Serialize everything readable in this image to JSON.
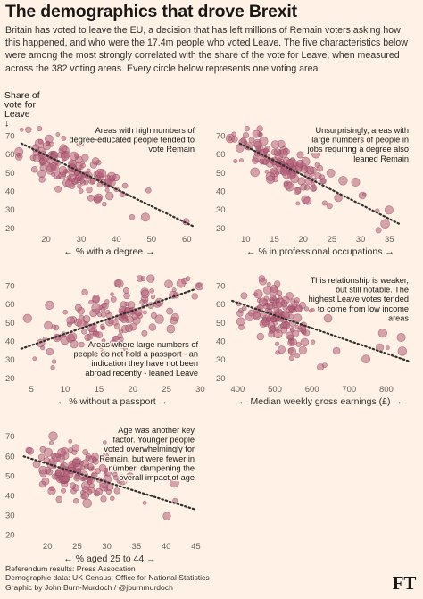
{
  "header": {
    "title": "The demographics that drove Brexit",
    "intro": "Britain has voted to leave the EU, a decision that has left millions of Remain voters asking how this happened, and who were the 17.4m people who voted Leave. The five characteristics below were among the most strongly correlated with the share of the vote for Leave, when measured across the 382 voting areas. Every circle below represents one voting area"
  },
  "y_axis_label": [
    "Share of",
    "vote for",
    "Leave",
    "↓"
  ],
  "colors": {
    "dot": "#b5607a",
    "dot_stroke": "#8e3e59",
    "trend": "#33302e",
    "background": "#fff1e5"
  },
  "chart_data": [
    {
      "type": "scatter",
      "xlabel": "← % with a degree →",
      "annotation": "Areas with high numbers of degree-educated people tended to vote Remain",
      "xlim": [
        12,
        64
      ],
      "xticks": [
        20,
        30,
        40,
        50,
        60
      ],
      "ylim": [
        18,
        76
      ],
      "yticks": [
        20,
        30,
        40,
        50,
        60,
        70
      ],
      "trend": [
        [
          13,
          66
        ],
        [
          62,
          21
        ]
      ],
      "cloud": {
        "x_mean": 27,
        "x_sd": 7,
        "x_skew_max": 60,
        "resid_sd": 6
      }
    },
    {
      "type": "scatter",
      "xlabel": "← % in professional occupations →",
      "annotation": "Unsurprisingly, areas with large numbers of people in jobs requiring a degree also leaned Remain",
      "xlim": [
        7,
        39
      ],
      "xticks": [
        10,
        15,
        20,
        25,
        30,
        35
      ],
      "ylim": [
        18,
        76
      ],
      "yticks": [
        20,
        30,
        40,
        50,
        60,
        70
      ],
      "trend": [
        [
          9,
          66
        ],
        [
          37,
          22
        ]
      ],
      "cloud": {
        "x_mean": 16,
        "x_sd": 4.2,
        "x_skew_max": 36,
        "resid_sd": 6
      }
    },
    {
      "type": "scatter",
      "xlabel": "← % without a passport →",
      "annotation": "Areas where large numbers of people do not hold a passport - an indication they have not been abroad recently - leaned Leave",
      "xlim": [
        3,
        31
      ],
      "xticks": [
        5,
        10,
        15,
        20,
        25,
        30
      ],
      "ylim": [
        18,
        76
      ],
      "yticks": [
        20,
        30,
        40,
        50,
        60,
        70
      ],
      "trend": [
        [
          3.5,
          36
        ],
        [
          29,
          68
        ]
      ],
      "cloud": {
        "x_mean": 17,
        "x_sd": 5,
        "x_skew_max": 30,
        "resid_sd": 8
      }
    },
    {
      "type": "scatter",
      "xlabel": "← Median weekly gross earnings (£) →",
      "annotation": "This relationship is weaker, but still notable. The highest Leave votes tended to come from low income areas",
      "xlim": [
        375,
        870
      ],
      "xticks": [
        400,
        500,
        600,
        700,
        800
      ],
      "ylim": [
        18,
        76
      ],
      "yticks": [
        20,
        30,
        40,
        50,
        60,
        70
      ],
      "trend": [
        [
          385,
          62
        ],
        [
          865,
          29
        ]
      ],
      "cloud": {
        "x_mean": 505,
        "x_sd": 55,
        "x_skew_max": 850,
        "resid_sd": 8
      }
    },
    {
      "type": "scatter",
      "xlabel": "← % aged 25 to 44 →",
      "annotation": "Age was another key factor. Younger people voted overwhelmingly for Remain, but were fewer in number, dampening the overall impact of age",
      "xlim": [
        15,
        46
      ],
      "xticks": [
        20,
        25,
        30,
        35,
        40,
        45
      ],
      "ylim": [
        18,
        76
      ],
      "yticks": [
        20,
        30,
        40,
        50,
        60,
        70
      ],
      "trend": [
        [
          16,
          60
        ],
        [
          45,
          33
        ]
      ],
      "cloud": {
        "x_mean": 25,
        "x_sd": 3.2,
        "x_skew_max": 44,
        "resid_sd": 7
      }
    }
  ],
  "footer": {
    "lines": [
      "Referendum results: Press Assocation",
      "Demographic data: UK Census, Office for National Statistics",
      "Graphic by John Burn-Murdoch / @jburnmurdoch"
    ],
    "logo": "FT"
  }
}
